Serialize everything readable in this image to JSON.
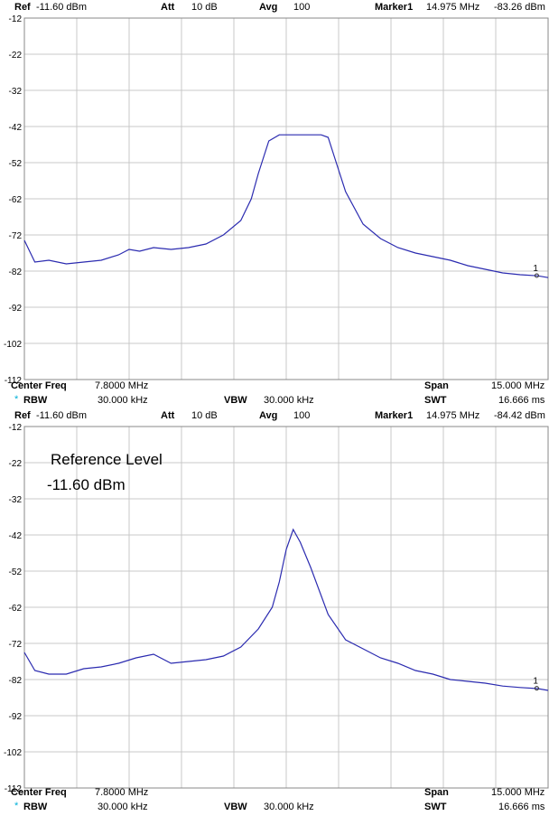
{
  "chart_data": [
    {
      "type": "line",
      "header": {
        "ref_label": "Ref",
        "ref_value": "-11.60 dBm",
        "att_label": "Att",
        "att_value": "10 dB",
        "avg_label": "Avg",
        "avg_value": "100",
        "marker_label": "Marker1",
        "marker_freq": "14.975 MHz",
        "marker_level": "-83.26 dBm"
      },
      "footer": {
        "center_label": "Center Freq",
        "center_value": "7.8000 MHz",
        "span_label": "Span",
        "span_value": "15.000 MHz",
        "rbw_star": "*",
        "rbw_label": "RBW",
        "rbw_value": "30.000 kHz",
        "vbw_label": "VBW",
        "vbw_value": "30.000 kHz",
        "swt_label": "SWT",
        "swt_value": "16.666 ms"
      },
      "yticks": [
        "-12",
        "-22",
        "-32",
        "-42",
        "-52",
        "-62",
        "-72",
        "-82",
        "-92",
        "-102",
        "-112"
      ],
      "ylim": [
        -112,
        -12
      ],
      "xlim": [
        0.3,
        15.3
      ],
      "grid": true,
      "marker": {
        "label": "1",
        "x": 14.975,
        "y": -83.26
      },
      "series": [
        {
          "color": "#2b2bb0",
          "x": [
            0.3,
            0.6,
            1.0,
            1.5,
            2.0,
            2.5,
            3.0,
            3.3,
            3.6,
            4.0,
            4.5,
            5.0,
            5.5,
            6.0,
            6.5,
            6.8,
            7.0,
            7.3,
            7.6,
            8.0,
            8.4,
            8.8,
            9.0,
            9.2,
            9.5,
            10.0,
            10.5,
            11.0,
            11.5,
            12.0,
            12.5,
            13.0,
            13.5,
            14.0,
            14.5,
            15.0,
            15.3
          ],
          "y": [
            -73.5,
            -79.5,
            -79,
            -80,
            -79.5,
            -79,
            -77.5,
            -76,
            -76.5,
            -75.5,
            -76,
            -75.5,
            -74.5,
            -72,
            -68,
            -62,
            -55,
            -46,
            -44.3,
            -44.3,
            -44.3,
            -44.3,
            -45,
            -51,
            -60,
            -69,
            -73,
            -75.5,
            -77,
            -78,
            -79,
            -80.5,
            -81.5,
            -82.5,
            -83,
            -83.3,
            -83.8
          ]
        }
      ]
    },
    {
      "type": "line",
      "header": {
        "ref_label": "Ref",
        "ref_value": "-11.60 dBm",
        "att_label": "Att",
        "att_value": "10 dB",
        "avg_label": "Avg",
        "avg_value": "100",
        "marker_label": "Marker1",
        "marker_freq": "14.975 MHz",
        "marker_level": "-84.42 dBm"
      },
      "footer": {
        "center_label": "Center Freq",
        "center_value": "7.8000 MHz",
        "span_label": "Span",
        "span_value": "15.000 MHz",
        "rbw_star": "*",
        "rbw_label": "RBW",
        "rbw_value": "30.000 kHz",
        "vbw_label": "VBW",
        "vbw_value": "30.000 kHz",
        "swt_label": "SWT",
        "swt_value": "16.666 ms"
      },
      "yticks": [
        "-12",
        "-22",
        "-32",
        "-42",
        "-52",
        "-62",
        "-72",
        "-82",
        "-92",
        "-102",
        "-112"
      ],
      "ylim": [
        -112,
        -12
      ],
      "xlim": [
        0.3,
        15.3
      ],
      "grid": true,
      "annotation": {
        "line1": "Reference Level",
        "line2": "-11.60 dBm"
      },
      "marker": {
        "label": "1",
        "x": 14.975,
        "y": -84.42
      },
      "series": [
        {
          "color": "#2b2bb0",
          "x": [
            0.3,
            0.6,
            1.0,
            1.5,
            2.0,
            2.5,
            3.0,
            3.5,
            4.0,
            4.5,
            5.0,
            5.5,
            6.0,
            6.5,
            7.0,
            7.4,
            7.6,
            7.8,
            8.0,
            8.2,
            8.5,
            9.0,
            9.5,
            10.0,
            10.5,
            11.0,
            11.5,
            12.0,
            12.5,
            13.0,
            13.5,
            14.0,
            14.5,
            15.0,
            15.3
          ],
          "y": [
            -74.5,
            -79.5,
            -80.5,
            -80.5,
            -79,
            -78.5,
            -77.5,
            -76,
            -75,
            -77.5,
            -77,
            -76.5,
            -75.5,
            -73,
            -68,
            -62,
            -55,
            -46,
            -40.5,
            -44,
            -51,
            -64,
            -71,
            -73.5,
            -76,
            -77.5,
            -79.5,
            -80.5,
            -82,
            -82.5,
            -83,
            -83.8,
            -84.2,
            -84.5,
            -85
          ]
        }
      ]
    }
  ]
}
